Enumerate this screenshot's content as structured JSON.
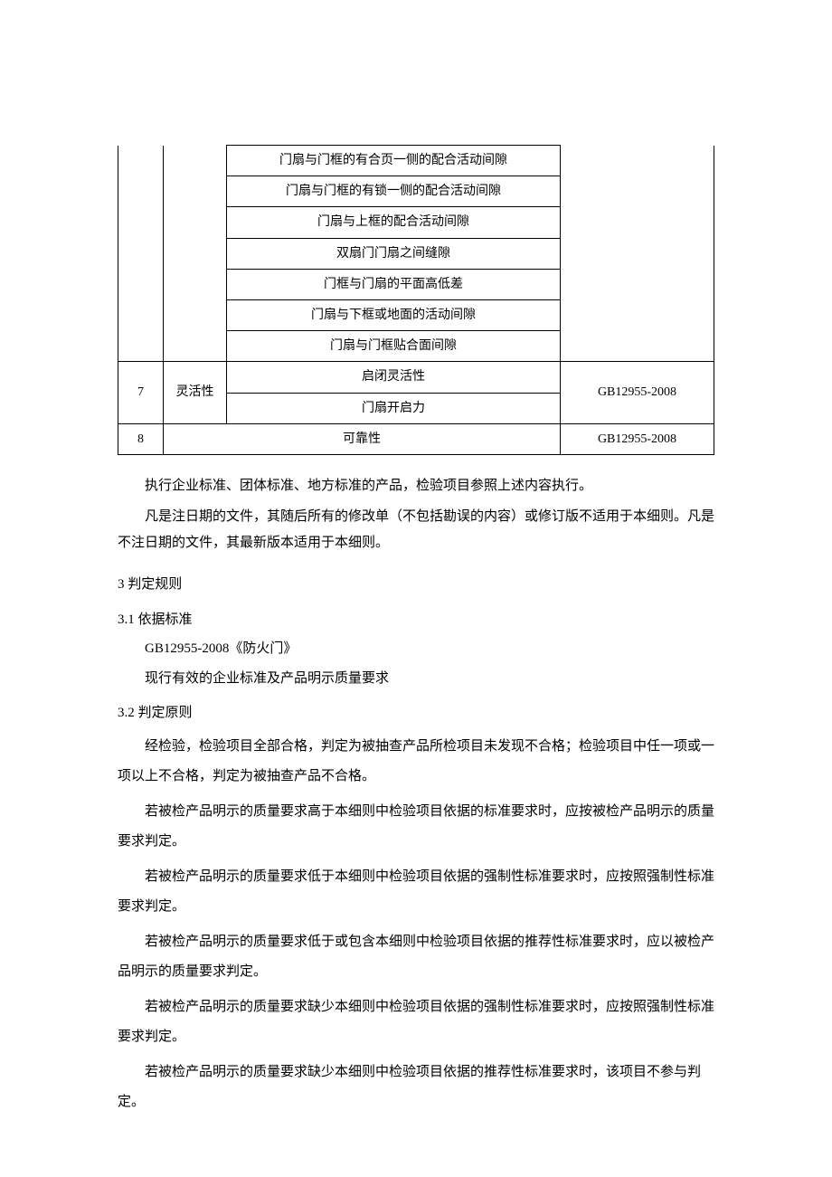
{
  "table": {
    "row6_items": [
      "门扇与门框的有合页一侧的配合活动间隙",
      "门扇与门框的有锁一侧的配合活动间隙",
      "门扇与上框的配合活动间隙",
      "双扇门门扇之间缝隙",
      "门框与门扇的平面高低差",
      "门扇与下框或地面的活动间隙",
      "门扇与门框贴合面间隙"
    ],
    "row7": {
      "num": "7",
      "cat": "灵活性",
      "items": [
        "启闭灵活性",
        "门扇开启力"
      ],
      "std": "GB12955-2008"
    },
    "row8": {
      "num": "8",
      "item": "可靠性",
      "std": "GB12955-2008"
    }
  },
  "p1": "执行企业标准、团体标准、地方标准的产品，检验项目参照上述内容执行。",
  "p2": "凡是注日期的文件，其随后所有的修改单（不包括勘误的内容）或修订版不适用于本细则。凡是不注日期的文件，其最新版本适用于本细则。",
  "s3": "3 判定规则",
  "s31": "3.1 依据标准",
  "s31_1": "GB12955-2008《防火门》",
  "s31_2": "现行有效的企业标准及产品明示质量要求",
  "s32": "3.2 判定原则",
  "b1": "经检验，检验项目全部合格，判定为被抽查产品所检项目未发现不合格；检验项目中任一项或一项以上不合格，判定为被抽查产品不合格。",
  "b2": "若被检产品明示的质量要求高于本细则中检验项目依据的标准要求时，应按被检产品明示的质量要求判定。",
  "b3": "若被检产品明示的质量要求低于本细则中检验项目依据的强制性标准要求时，应按照强制性标准要求判定。",
  "b4": "若被检产品明示的质量要求低于或包含本细则中检验项目依据的推荐性标准要求时，应以被检产品明示的质量要求判定。",
  "b5": "若被检产品明示的质量要求缺少本细则中检验项目依据的强制性标准要求时，应按照强制性标准要求判定。",
  "b6": "若被检产品明示的质量要求缺少本细则中检验项目依据的推荐性标准要求时，该项目不参与判定。"
}
